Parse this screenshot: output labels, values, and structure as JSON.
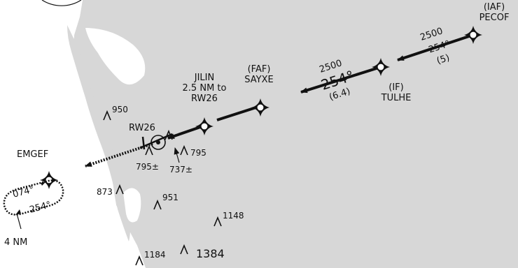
{
  "map": {
    "fixes": {
      "pecof": {
        "role": "(IAF)",
        "name": "PECOF"
      },
      "tulhe": {
        "role": "(IF)",
        "name": "TULHE"
      },
      "sayxe": {
        "role": "(FAF)",
        "name": "SAYXE"
      },
      "jilin": {
        "line1": "JILIN",
        "line2": "2.5 NM to",
        "line3": "RW26"
      },
      "emgef": {
        "name": "EMGEF"
      }
    },
    "legs": {
      "pecof_tulhe": {
        "altitude": "2500",
        "course": "254°",
        "distance": "(5)"
      },
      "tulhe_sayxe": {
        "altitude": "2500",
        "course": "254°",
        "distance": "(6.4)"
      }
    },
    "runway": {
      "label": "RW26"
    },
    "holding": {
      "inbound": "074°",
      "outbound": "254°",
      "leg_length": "4 NM"
    },
    "obstacles": [
      "950",
      "795",
      "795±",
      "737±",
      "873",
      "951",
      "1148",
      "1184",
      "1384"
    ],
    "colors": {
      "land": "#d7d7d7",
      "water": "#ffffff",
      "ink": "#111111"
    }
  }
}
